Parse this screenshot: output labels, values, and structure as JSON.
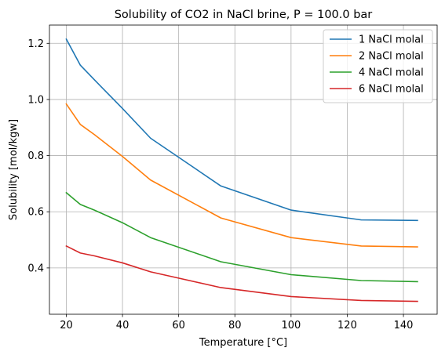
{
  "chart_data": {
    "type": "line",
    "title": "Solubility of CO2 in NaCl brine, P = 100.0 bar",
    "xlabel": "Temperature [°C]",
    "ylabel": "Solubility [mol/kgw]",
    "xlim": [
      14,
      152
    ],
    "ylim": [
      0.235,
      1.265
    ],
    "xticks": [
      20,
      40,
      60,
      80,
      100,
      120,
      140
    ],
    "yticks": [
      0.4,
      0.6,
      0.8,
      1.0,
      1.2
    ],
    "xtick_labels": [
      "20",
      "40",
      "60",
      "80",
      "100",
      "120",
      "140"
    ],
    "ytick_labels": [
      "0.4",
      "0.6",
      "0.8",
      "1.0",
      "1.2"
    ],
    "grid": true,
    "legend_position": "top-right",
    "x": [
      20,
      25,
      30,
      40,
      50,
      75,
      100,
      125,
      145
    ],
    "series": [
      {
        "name": "1 NaCl molal",
        "color": "#1f77b4",
        "values": [
          1.215,
          1.122,
          1.07,
          0.968,
          0.862,
          0.692,
          0.606,
          0.571,
          0.569
        ]
      },
      {
        "name": "2 NaCl molal",
        "color": "#ff7f0e",
        "values": [
          0.984,
          0.911,
          0.875,
          0.797,
          0.713,
          0.578,
          0.508,
          0.478,
          0.475
        ]
      },
      {
        "name": "4 NaCl molal",
        "color": "#2ca02c",
        "values": [
          0.668,
          0.626,
          0.606,
          0.561,
          0.508,
          0.422,
          0.376,
          0.355,
          0.351
        ]
      },
      {
        "name": "6 NaCl molal",
        "color": "#d62728",
        "values": [
          0.478,
          0.453,
          0.443,
          0.418,
          0.386,
          0.33,
          0.298,
          0.284,
          0.281
        ]
      }
    ]
  }
}
